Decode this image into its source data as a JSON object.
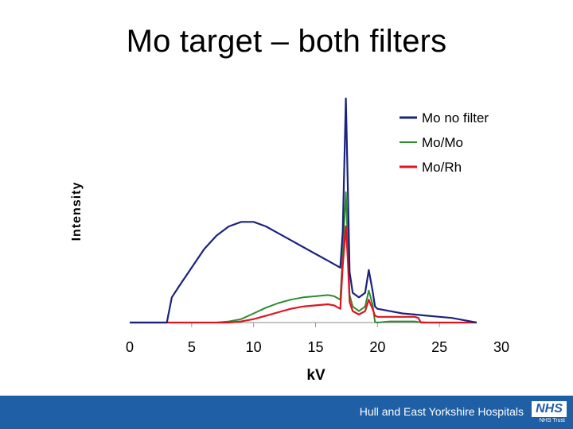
{
  "slide": {
    "title": "Mo target – both filters"
  },
  "footer": {
    "organisation": "Hull and East Yorkshire Hospitals",
    "logo_text": "NHS",
    "trust_text": "NHS Trust",
    "background_color": "#1f5fa6"
  },
  "chart_data": {
    "type": "line",
    "xlabel": "kV",
    "ylabel": "Intensity",
    "xlim": [
      0,
      30
    ],
    "ylim": [
      0,
      100
    ],
    "xticks": [
      0,
      5,
      10,
      15,
      20,
      25,
      30
    ],
    "grid": false,
    "legend_position": "top-right",
    "series": [
      {
        "name": "Mo no filter",
        "color": "#1a237e",
        "x": [
          0,
          2,
          3,
          3.1,
          3.4,
          4,
          5,
          6,
          7,
          8,
          9,
          10,
          11,
          12,
          13,
          14,
          15,
          16,
          17,
          17.2,
          17.45,
          17.6,
          17.75,
          18,
          18.5,
          19,
          19.3,
          19.6,
          19.8,
          20,
          21,
          22,
          23,
          24,
          25,
          26,
          27,
          28
        ],
        "y": [
          0,
          0,
          0,
          3,
          11,
          16,
          24,
          32,
          38,
          42,
          44,
          44,
          42,
          39,
          36,
          33,
          30,
          27,
          24,
          40,
          98,
          60,
          22,
          13,
          11,
          13,
          23,
          14,
          7,
          6,
          5,
          4,
          3.5,
          3,
          2.5,
          2,
          1,
          0
        ]
      },
      {
        "name": "Mo/Mo",
        "color": "#2e8b2e",
        "x": [
          0,
          7,
          8,
          9,
          10,
          11,
          12,
          13,
          14,
          15,
          16,
          16.5,
          17,
          17.2,
          17.45,
          17.6,
          17.75,
          18,
          18.5,
          19,
          19.3,
          19.6,
          19.8,
          20,
          21,
          22,
          23,
          23.3,
          24,
          25,
          26,
          27,
          28
        ],
        "y": [
          0,
          0,
          0.5,
          1.5,
          4,
          6.5,
          8.5,
          10,
          11,
          11.5,
          12,
          11.5,
          10,
          30,
          57,
          35,
          12,
          7,
          5,
          7,
          14,
          8,
          0.2,
          0,
          0.5,
          0.5,
          0.5,
          0.2,
          0,
          0,
          0,
          0,
          0
        ]
      },
      {
        "name": "Mo/Rh",
        "color": "#e0141e",
        "x": [
          0,
          7,
          8,
          9,
          10,
          11,
          12,
          13,
          14,
          15,
          16,
          16.5,
          17,
          17.2,
          17.45,
          17.6,
          17.75,
          18,
          18.5,
          19,
          19.3,
          19.6,
          19.8,
          20,
          21,
          22,
          23,
          23.3,
          23.5,
          24,
          25,
          26,
          27,
          28
        ],
        "y": [
          0,
          0,
          0,
          0.5,
          1.5,
          3,
          4.5,
          6,
          7,
          7.5,
          8,
          7.5,
          6,
          25,
          42,
          28,
          9,
          5,
          3.5,
          5,
          10,
          6,
          3,
          2.5,
          2.5,
          2.5,
          2.5,
          2,
          0,
          0,
          0,
          0,
          0,
          0
        ]
      }
    ]
  }
}
